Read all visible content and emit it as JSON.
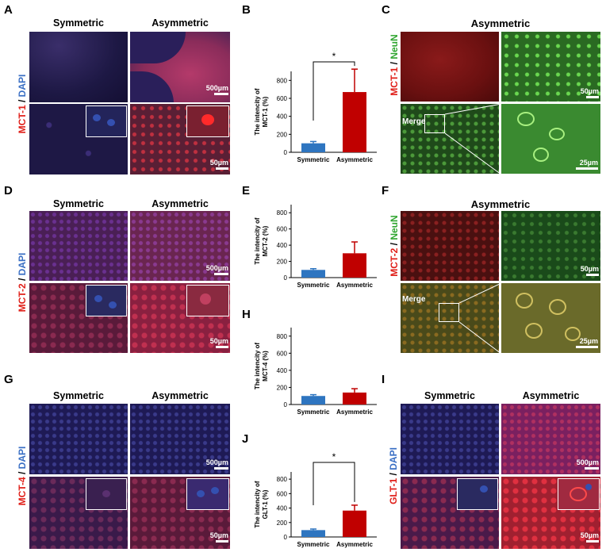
{
  "panels": {
    "A": {
      "letter": "A",
      "col_left": "Symmetric",
      "col_right": "Asymmetric",
      "stain": "MCT-1",
      "sep": " / ",
      "dapi": "DAPI",
      "scale_top": "500µm",
      "scale_bottom": "50µm"
    },
    "C": {
      "letter": "C",
      "title": "Asymmetric",
      "stain": "MCT-1",
      "sep": " / ",
      "neun": "NeuN",
      "merge": "Merge",
      "scale_top": "50µm",
      "scale_bottom": "25µm"
    },
    "D": {
      "letter": "D",
      "col_left": "Symmetric",
      "col_right": "Asymmetric",
      "stain": "MCT-2",
      "sep": " / ",
      "dapi": "DAPI",
      "scale_top": "500µm",
      "scale_bottom": "50µm"
    },
    "F": {
      "letter": "F",
      "title": "Asymmetric",
      "stain": "MCT-2",
      "sep": " / ",
      "neun": "NeuN",
      "merge": "Merge",
      "scale_top": "50µm",
      "scale_bottom": "25µm"
    },
    "G": {
      "letter": "G",
      "col_left": "Symmetric",
      "col_right": "Asymmetric",
      "stain": "MCT-4",
      "sep": " / ",
      "dapi": "DAPI",
      "scale_top": "500µm",
      "scale_bottom": "50µm"
    },
    "I": {
      "letter": "I",
      "col_left": "Symmetric",
      "col_right": "Asymmetric",
      "stain": "GLT-1",
      "sep": " / ",
      "dapi": "DAPI",
      "scale_top": "500µm",
      "scale_bottom": "50µm"
    }
  },
  "colors": {
    "symmetric_bar": "#2e75c0",
    "asymmetric_bar": "#c00000",
    "red_stain": "#e0201a",
    "green_stain": "#2fa52f",
    "dapi_blue": "#3a6fc4"
  },
  "chart_data": [
    {
      "letter": "B",
      "type": "bar",
      "categories": [
        "Symmetric",
        "Asymmetric"
      ],
      "values": [
        100,
        670
      ],
      "errors": [
        20,
        255
      ],
      "ylabel_line1": "The intencity of",
      "ylabel_line2": "MCT-1 (%)",
      "ylim": [
        0,
        900
      ],
      "yticks": [
        0,
        200,
        400,
        600,
        800
      ],
      "significance": "*"
    },
    {
      "letter": "E",
      "type": "bar",
      "categories": [
        "Symmetric",
        "Asymmetric"
      ],
      "values": [
        95,
        300
      ],
      "errors": [
        15,
        140
      ],
      "ylabel_line1": "The intencity of",
      "ylabel_line2": "MCT-2 (%)",
      "ylim": [
        0,
        900
      ],
      "yticks": [
        0,
        200,
        400,
        600,
        800
      ],
      "significance": ""
    },
    {
      "letter": "H",
      "type": "bar",
      "categories": [
        "Symmetric",
        "Asymmetric"
      ],
      "values": [
        100,
        140
      ],
      "errors": [
        15,
        45
      ],
      "ylabel_line1": "The intencity of",
      "ylabel_line2": "MCT-4 (%)",
      "ylim": [
        0,
        900
      ],
      "yticks": [
        0,
        200,
        400,
        600,
        800
      ],
      "significance": ""
    },
    {
      "letter": "J",
      "type": "bar",
      "categories": [
        "Symmetric",
        "Asymmetric"
      ],
      "values": [
        95,
        365
      ],
      "errors": [
        15,
        75
      ],
      "ylabel_line1": "The intencity of",
      "ylabel_line2": "GLT-1 (%)",
      "ylim": [
        0,
        900
      ],
      "yticks": [
        0,
        200,
        400,
        600,
        800
      ],
      "significance": "*"
    }
  ]
}
